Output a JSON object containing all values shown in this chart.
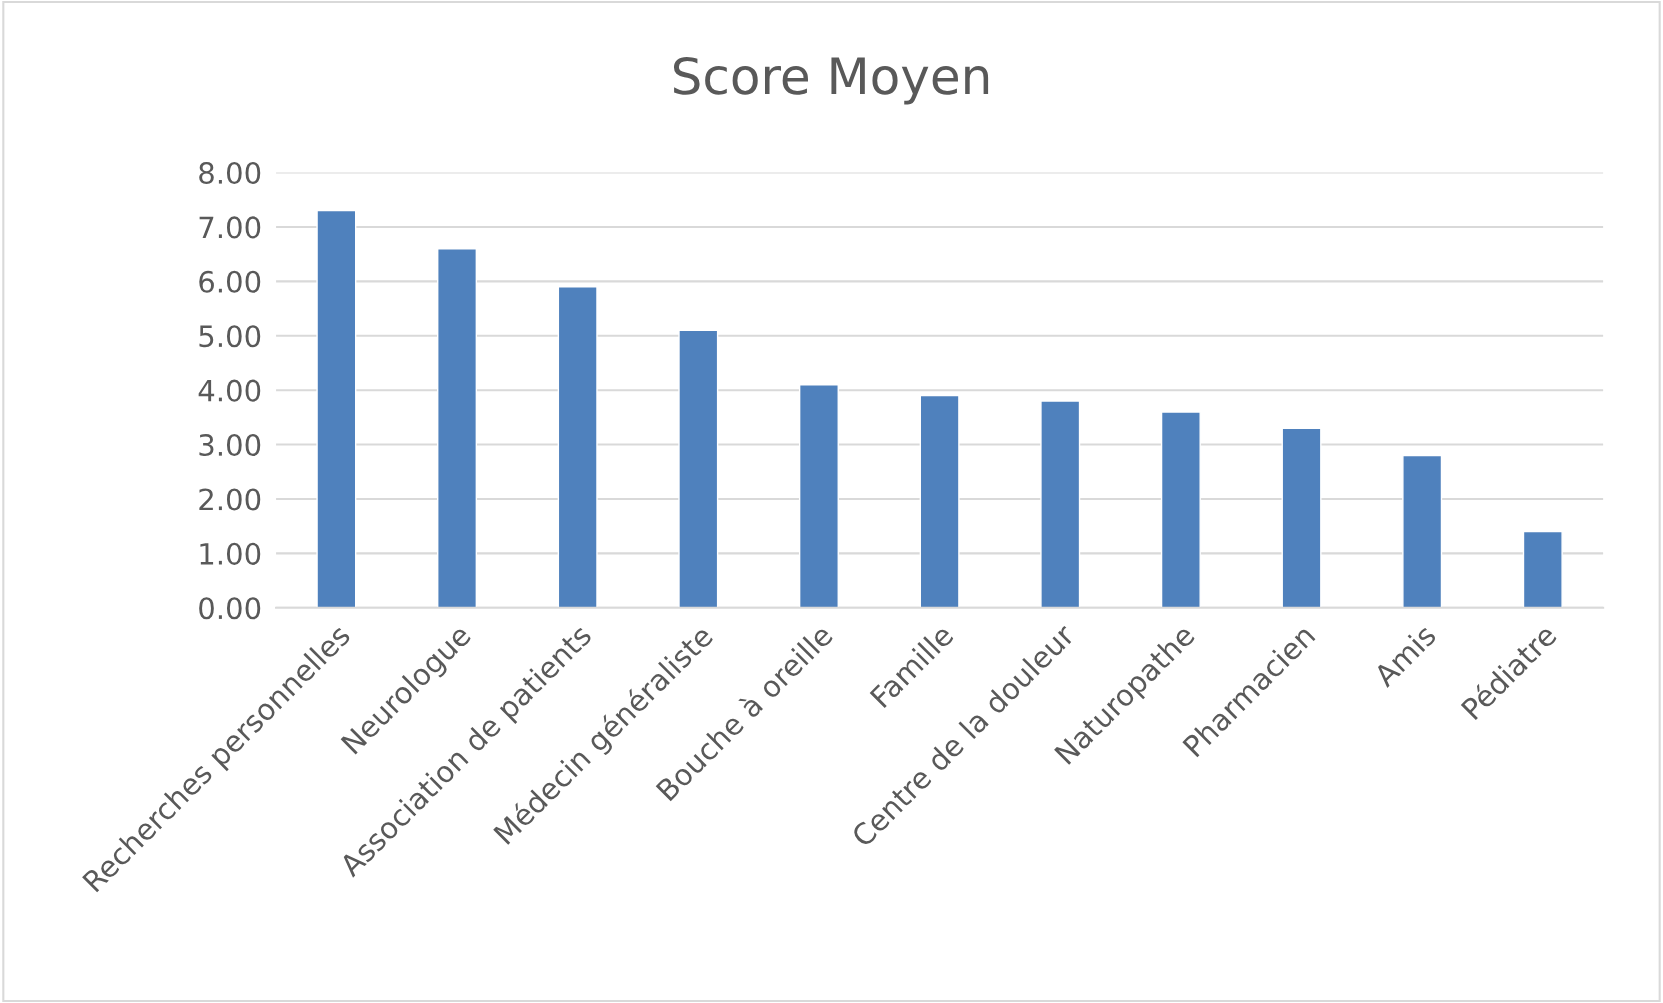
{
  "chart_data": {
    "type": "bar",
    "title": "Score Moyen",
    "categories": [
      "Recherches personnelles",
      "Neurologue",
      "Association de patients",
      "Médecin généraliste",
      "Bouche à oreille",
      "Famille",
      "Centre de la douleur",
      "Naturopathe",
      "Pharmacien",
      "Amis",
      "Pédiatre"
    ],
    "values": [
      7.3,
      6.6,
      5.9,
      5.1,
      4.1,
      3.9,
      3.8,
      3.6,
      3.3,
      2.8,
      1.4
    ],
    "color": "#4f81bd",
    "ylim": [
      0,
      8
    ],
    "yticks": [
      {
        "value": 0,
        "label": "0.00"
      },
      {
        "value": 1,
        "label": "1.00"
      },
      {
        "value": 2,
        "label": "2.00"
      },
      {
        "value": 3,
        "label": "3.00"
      },
      {
        "value": 4,
        "label": "4.00"
      },
      {
        "value": 5,
        "label": "5.00"
      },
      {
        "value": 6,
        "label": "6.00"
      },
      {
        "value": 7,
        "label": "7.00"
      },
      {
        "value": 8,
        "label": "8.00"
      }
    ],
    "grid": "y",
    "legend": false
  }
}
